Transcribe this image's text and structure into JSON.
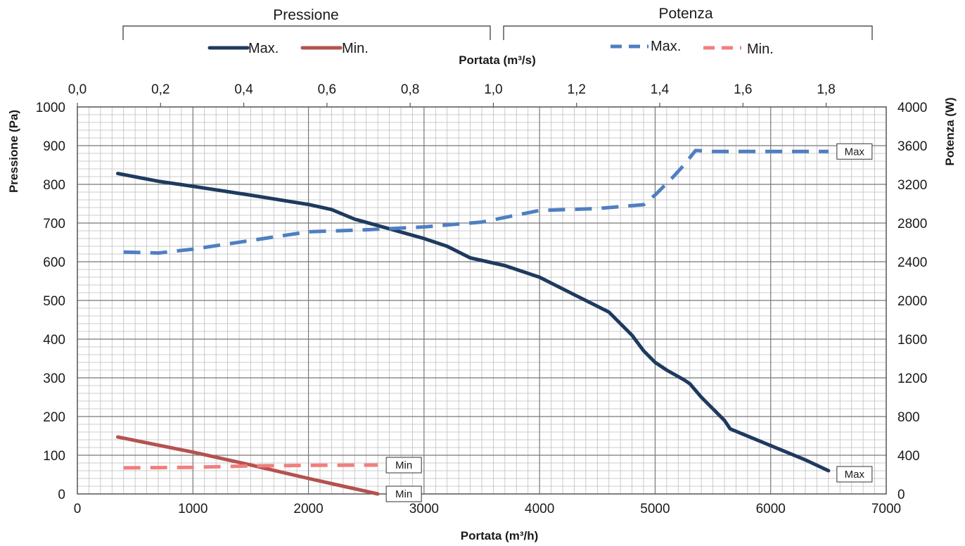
{
  "chart_data": {
    "type": "line",
    "x_bottom": {
      "label": "Portata (m³/h)",
      "range": [
        0,
        7000
      ],
      "ticks": [
        "0",
        "1000",
        "2000",
        "3000",
        "4000",
        "5000",
        "6000",
        "7000"
      ]
    },
    "x_top": {
      "label": "Portata (m³/s)",
      "ticks": [
        "0,0",
        "0,2",
        "0,4",
        "0,6",
        "0,8",
        "1,0",
        "1,2",
        "1,4",
        "1,6",
        "1,8"
      ]
    },
    "y_left": {
      "label": "Pressione (Pa)",
      "range": [
        0,
        1000
      ],
      "ticks": [
        "0",
        "100",
        "200",
        "300",
        "400",
        "500",
        "600",
        "700",
        "800",
        "900",
        "1000"
      ]
    },
    "y_right": {
      "label": "Potenza (W)",
      "range": [
        0,
        4000
      ],
      "ticks": [
        "0",
        "400",
        "800",
        "1200",
        "1600",
        "2000",
        "2400",
        "2800",
        "3200",
        "3600",
        "4000"
      ]
    },
    "grid": true,
    "legend_groups": [
      {
        "title": "Pressione",
        "entries": [
          {
            "label": "Max.",
            "color": "#1f3a5f",
            "style": "solid"
          },
          {
            "label": "Min.",
            "color": "#b5524f",
            "style": "solid"
          }
        ]
      },
      {
        "title": "Potenza",
        "entries": [
          {
            "label": "Max.",
            "color": "#4f7fc1",
            "style": "dashed"
          },
          {
            "label": "Min.",
            "color": "#f07f7f",
            "style": "dashed"
          }
        ]
      }
    ],
    "series": [
      {
        "axis": "left",
        "color": "#1f3a5f",
        "style": "solid",
        "end_label": "Max",
        "x": [
          350,
          700,
          1000,
          1500,
          2000,
          2200,
          2400,
          2700,
          3000,
          3200,
          3400,
          3700,
          4000,
          4300,
          4600,
          4800,
          4900,
          5000,
          5100,
          5250,
          5300,
          5400,
          5550,
          5600,
          5650,
          6000,
          6300,
          6500
        ],
        "y": [
          828,
          808,
          795,
          772,
          748,
          735,
          710,
          685,
          660,
          640,
          610,
          590,
          560,
          515,
          470,
          410,
          370,
          340,
          320,
          295,
          285,
          250,
          205,
          190,
          168,
          125,
          88,
          60
        ]
      },
      {
        "axis": "left",
        "color": "#b5524f",
        "style": "solid",
        "end_label": "Min",
        "x": [
          350,
          1000,
          1500,
          2000,
          2300,
          2600
        ],
        "y": [
          147,
          108,
          75,
          40,
          20,
          0
        ]
      },
      {
        "axis": "right",
        "color": "#4f7fc1",
        "style": "dashed",
        "end_label": "Max",
        "x": [
          400,
          700,
          1000,
          1500,
          2000,
          2500,
          3000,
          3500,
          4000,
          4500,
          4700,
          4900,
          5000,
          5150,
          5250,
          5350,
          5500,
          6000,
          6500
        ],
        "y": [
          2500,
          2490,
          2530,
          2620,
          2710,
          2730,
          2760,
          2810,
          2930,
          2950,
          2970,
          2990,
          3090,
          3270,
          3400,
          3550,
          3540,
          3540,
          3540
        ]
      },
      {
        "axis": "right",
        "color": "#f07f7f",
        "style": "dashed",
        "end_label": "Min",
        "x": [
          400,
          1000,
          1500,
          2000,
          2600
        ],
        "y": [
          270,
          275,
          290,
          295,
          298
        ]
      }
    ]
  }
}
